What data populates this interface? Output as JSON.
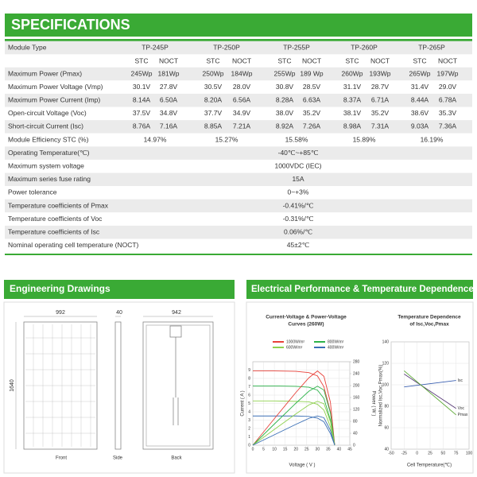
{
  "header": {
    "title": "SPECIFICATIONS"
  },
  "table": {
    "label_header": "Module Type",
    "models": [
      "TP-245P",
      "TP-250P",
      "TP-255P",
      "TP-260P",
      "TP-265P"
    ],
    "subheaders": [
      "STC",
      "NOCT"
    ],
    "rows": [
      {
        "label": "Maximum Power (Pmax)",
        "values": [
          "245Wp",
          "181Wp",
          "250Wp",
          "184Wp",
          "255Wp",
          "189 Wp",
          "260Wp",
          "193Wp",
          "265Wp",
          "197Wp"
        ]
      },
      {
        "label": "Maximum Power Voltage (Vmp)",
        "values": [
          "30.1V",
          "27.8V",
          "30.5V",
          "28.0V",
          "30.8V",
          "28.5V",
          "31.1V",
          "28.7V",
          "31.4V",
          "29.0V"
        ]
      },
      {
        "label": "Maximum Power Current (Imp)",
        "values": [
          "8.14A",
          "6.50A",
          "8.20A",
          "6.56A",
          "8.28A",
          "6.63A",
          "8.37A",
          "6.71A",
          "8.44A",
          "6.78A"
        ]
      },
      {
        "label": "Open-circuit Voltage (Voc)",
        "values": [
          "37.5V",
          "34.8V",
          "37.7V",
          "34.9V",
          "38.0V",
          "35.2V",
          "38.1V",
          "35.2V",
          "38.6V",
          "35.3V"
        ]
      },
      {
        "label": "Short-circuit Current (Isc)",
        "values": [
          "8.76A",
          "7.16A",
          "8.85A",
          "7.21A",
          "8.92A",
          "7.26A",
          "8.98A",
          "7.31A",
          "9.03A",
          "7.36A"
        ]
      },
      {
        "label": "Module Efficiency STC (%)",
        "values": [
          "14.97%",
          "15.27%",
          "15.58%",
          "15.89%",
          "16.19%"
        ]
      },
      {
        "label": "Operating Temperature(℃)",
        "values": [
          "-40℃~+85℃"
        ]
      },
      {
        "label": "Maximum system voltage",
        "values": [
          "1000VDC (IEC)"
        ]
      },
      {
        "label": "Maximum series fuse rating",
        "values": [
          "15A"
        ]
      },
      {
        "label": "Power tolerance",
        "values": [
          "0~+3%"
        ]
      },
      {
        "label": "Temperature coefficients of Pmax",
        "values": [
          "-0.41%/℃"
        ]
      },
      {
        "label": "Temperature coefficients of Voc",
        "values": [
          "-0.31%/℃"
        ]
      },
      {
        "label": "Temperature coefficients of Isc",
        "values": [
          "0.06%/℃"
        ]
      },
      {
        "label": "Nominal operating cell temperature  (NOCT)",
        "values": [
          "45±2℃"
        ]
      }
    ]
  },
  "drawings": {
    "title": "Engineering Drawings",
    "width": "992",
    "depth": "40",
    "inner_width": "942",
    "height": "1640",
    "front": "Front",
    "side": "Side",
    "back": "Back"
  },
  "performance": {
    "title": "Electrical Performance & Temperature Dependence",
    "charts": [
      {
        "type": "line",
        "title_lines": [
          "Current-Voltage & Power-Voltage",
          "Curves (260W)"
        ],
        "x_label": "Voltage ( V )",
        "y_label": "Current ( A )",
        "y2_label": "Power ( W )",
        "x": [
          0,
          10,
          20,
          26,
          30,
          33,
          36,
          38
        ],
        "xlim": [
          0,
          45
        ],
        "xticks": [
          0,
          5,
          10,
          15,
          20,
          25,
          30,
          35,
          40,
          45
        ],
        "ylim": [
          0,
          10
        ],
        "yticks": [
          0,
          1,
          2,
          3,
          4,
          5,
          6,
          7,
          8,
          9
        ],
        "y2lim": [
          0,
          280
        ],
        "y2ticks": [
          0,
          40,
          80,
          120,
          160,
          200,
          240,
          280
        ],
        "series": [
          {
            "name": "1000W/m²",
            "color": "#e8413a",
            "values": [
              8.9,
              8.9,
              8.85,
              8.7,
              8.3,
              7,
              4,
              0
            ]
          },
          {
            "name": "800W/m²",
            "color": "#2db34a",
            "values": [
              7.1,
              7.1,
              7.05,
              6.95,
              6.6,
              5.6,
              3,
              0
            ]
          },
          {
            "name": "600W/m²",
            "color": "#8fd14f",
            "values": [
              5.3,
              5.3,
              5.25,
              5.2,
              4.9,
              4.2,
              2.2,
              0
            ]
          },
          {
            "name": "400W/m²",
            "color": "#3a6fb5",
            "values": [
              3.5,
              3.5,
              3.5,
              3.45,
              3.25,
              2.8,
              1.4,
              0
            ]
          },
          {
            "color": "#e8413a",
            "axis": "y2",
            "values": [
              0,
              89,
              177,
              226,
              249,
              231,
              144,
              0
            ]
          },
          {
            "color": "#2db34a",
            "axis": "y2",
            "values": [
              0,
              71,
              141,
              181,
              198,
              185,
              108,
              0
            ]
          },
          {
            "color": "#8fd14f",
            "axis": "y2",
            "values": [
              0,
              53,
              105,
              135,
              147,
              139,
              79,
              0
            ]
          },
          {
            "color": "#3a6fb5",
            "axis": "y2",
            "values": [
              0,
              35,
              70,
              90,
              98,
              92,
              50,
              0
            ]
          }
        ]
      },
      {
        "type": "line",
        "title_lines": [
          "Temperature Dependence",
          "of Isc,Voc,Pmax"
        ],
        "x_label": "Cell Temperature(℃)",
        "y_label": "Normalized Isc,Voc,Pmax(%)",
        "x": [
          -25,
          75
        ],
        "xlim": [
          -50,
          100
        ],
        "xticks": [
          -50,
          -25,
          0,
          25,
          50,
          75,
          100
        ],
        "ylim": [
          40,
          140
        ],
        "yticks": [
          40,
          60,
          80,
          100,
          120,
          140
        ],
        "grid": true,
        "series": [
          {
            "name": "Isc",
            "color": "#3a5fb0",
            "values": [
              98,
              104
            ]
          },
          {
            "name": "Voc",
            "color": "#5a3d7a",
            "values": [
              110,
              78
            ]
          },
          {
            "name": "Pmax",
            "color": "#5aa832",
            "values": [
              113,
              72
            ]
          }
        ]
      }
    ]
  }
}
